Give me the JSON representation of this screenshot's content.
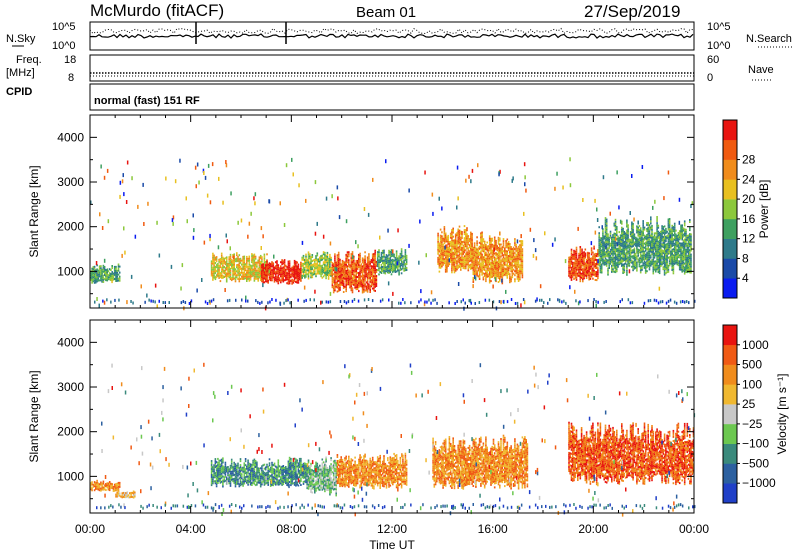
{
  "header": {
    "station": "McMurdo (fitACF)",
    "beam": "Beam 01",
    "date": "27/Sep/2019"
  },
  "top_strip": {
    "nsky_label": "N.Sky",
    "nsearch_label": "N.Search",
    "left_ticks": [
      "10^5",
      "10^0"
    ],
    "right_ticks": [
      "10^5",
      "10^0"
    ],
    "freq_label": "Freq.",
    "freq_unit": "[MHz]",
    "freq_ticks": [
      "18",
      "8"
    ],
    "nave_label": "Nave",
    "nave_ticks": [
      "60",
      "0"
    ],
    "cpid_label": "CPID",
    "cpid_text": "normal (fast) 151 RF"
  },
  "chart_data": [
    {
      "type": "heatmap",
      "name": "power",
      "ylabel": "Slant Range [km]",
      "xlabel": "Time UT",
      "x_ticks": [
        "00:00",
        "04:00",
        "08:00",
        "12:00",
        "16:00",
        "20:00",
        "00:00"
      ],
      "x_range_hours": [
        0,
        24
      ],
      "y_ticks": [
        1000,
        2000,
        3000,
        4000
      ],
      "ylim": [
        180,
        4500
      ],
      "colorbar": {
        "label": "Power [dB]",
        "ticks": [
          "4",
          "8",
          "12",
          "16",
          "20",
          "24",
          "28"
        ],
        "colors": [
          "#0a1cf0",
          "#1a4aa8",
          "#2e7a8a",
          "#3ea060",
          "#8cc83c",
          "#e8c020",
          "#f08c1c",
          "#f05a10",
          "#e81410"
        ]
      },
      "echo_regions": [
        {
          "t0": 0.0,
          "t1": 1.2,
          "r0": 720,
          "r1": 1150,
          "level": 3
        },
        {
          "t0": 4.8,
          "t1": 7.0,
          "r0": 750,
          "r1": 1400,
          "level": 5
        },
        {
          "t0": 6.8,
          "t1": 8.4,
          "r0": 700,
          "r1": 1250,
          "level": 8
        },
        {
          "t0": 8.4,
          "t1": 9.6,
          "r0": 800,
          "r1": 1450,
          "level": 4
        },
        {
          "t0": 9.6,
          "t1": 11.4,
          "r0": 500,
          "r1": 1450,
          "level": 7
        },
        {
          "t0": 11.4,
          "t1": 12.6,
          "r0": 900,
          "r1": 1500,
          "level": 3
        },
        {
          "t0": 13.8,
          "t1": 15.2,
          "r0": 950,
          "r1": 2000,
          "level": 6
        },
        {
          "t0": 15.2,
          "t1": 17.2,
          "r0": 700,
          "r1": 1900,
          "level": 6
        },
        {
          "t0": 19.0,
          "t1": 20.2,
          "r0": 750,
          "r1": 1550,
          "level": 7
        },
        {
          "t0": 20.2,
          "t1": 23.9,
          "r0": 900,
          "r1": 2200,
          "level": 3
        }
      ]
    },
    {
      "type": "heatmap",
      "name": "velocity",
      "ylabel": "Slant Range [km]",
      "xlabel": "Time UT",
      "x_ticks": [
        "00:00",
        "04:00",
        "08:00",
        "12:00",
        "16:00",
        "20:00",
        "00:00"
      ],
      "x_range_hours": [
        0,
        24
      ],
      "y_ticks": [
        1000,
        2000,
        3000,
        4000
      ],
      "ylim": [
        180,
        4500
      ],
      "colorbar": {
        "label": "Velocity [m s⁻¹]",
        "ticks": [
          "1000",
          "500",
          "100",
          "25",
          "−25",
          "−100",
          "−500",
          "−1000"
        ],
        "colors": [
          "#2040c8",
          "#2c60a0",
          "#3a8a7c",
          "#6cc850",
          "#c8c8c8",
          "#f0b830",
          "#f08c1c",
          "#f05a14",
          "#e81410"
        ]
      },
      "echo_regions": [
        {
          "t0": 0.0,
          "t1": 1.2,
          "r0": 650,
          "r1": 900,
          "level": 6
        },
        {
          "t0": 1.0,
          "t1": 1.8,
          "r0": 500,
          "r1": 650,
          "level": 5
        },
        {
          "t0": 4.8,
          "t1": 8.6,
          "r0": 750,
          "r1": 1400,
          "level": 2
        },
        {
          "t0": 8.6,
          "t1": 9.8,
          "r0": 550,
          "r1": 1450,
          "level": 3
        },
        {
          "t0": 9.8,
          "t1": 12.6,
          "r0": 700,
          "r1": 1500,
          "level": 6
        },
        {
          "t0": 13.6,
          "t1": 17.4,
          "r0": 700,
          "r1": 1900,
          "level": 6
        },
        {
          "t0": 19.0,
          "t1": 24.0,
          "r0": 800,
          "r1": 2200,
          "level": 7
        }
      ]
    }
  ]
}
